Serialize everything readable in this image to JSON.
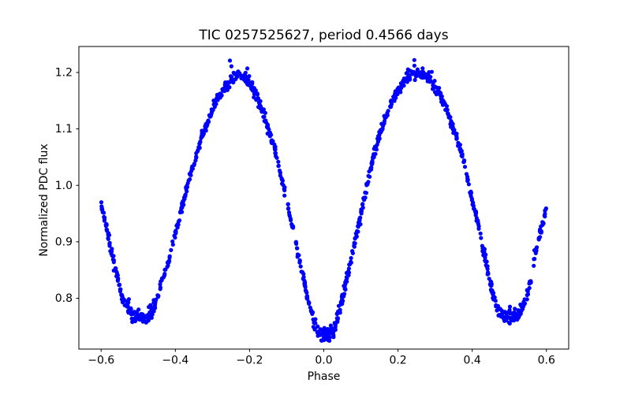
{
  "figure": {
    "title": "TIC 0257525627, period 0.4566 days",
    "xlabel": "Phase",
    "ylabel": "Normalized PDC flux"
  },
  "colors": {
    "marker": "#0000ff",
    "axis": "#000000",
    "text": "#000000",
    "background": "#ffffff"
  },
  "chart_data": {
    "type": "scatter",
    "title": "TIC 0257525627, period 0.4566 days",
    "xlabel": "Phase",
    "ylabel": "Normalized PDC flux",
    "grid": false,
    "legend": null,
    "xlim": [
      -0.66,
      0.66
    ],
    "ylim": [
      0.71,
      1.246
    ],
    "x_ticks": [
      -0.6,
      -0.4,
      -0.2,
      0.0,
      0.2,
      0.4,
      0.6
    ],
    "x_tick_labels": [
      "−0.6",
      "−0.4",
      "−0.2",
      "0.0",
      "0.2",
      "0.4",
      "0.6"
    ],
    "y_ticks": [
      0.8,
      0.9,
      1.0,
      1.1,
      1.2
    ],
    "y_tick_labels": [
      "0.8",
      "0.9",
      "1.0",
      "1.1",
      "1.2"
    ],
    "marker": {
      "shape": "circle",
      "color": "#0000ff",
      "radius_px": 2.6
    },
    "phase_range": [
      -0.6,
      0.6
    ],
    "n_points": 1150,
    "noise_sigma": 0.0045,
    "noise_sigma_minima": 0.0062,
    "noise_sigma_maxima": 0.005,
    "seed": 20257,
    "curve_samples": [
      [
        -0.6,
        0.966
      ],
      [
        -0.59,
        0.941
      ],
      [
        -0.583,
        0.919
      ],
      [
        -0.575,
        0.891
      ],
      [
        -0.566,
        0.867
      ],
      [
        -0.558,
        0.844
      ],
      [
        -0.551,
        0.825
      ],
      [
        -0.545,
        0.807
      ],
      [
        -0.534,
        0.787
      ],
      [
        -0.519,
        0.773
      ],
      [
        -0.508,
        0.768
      ],
      [
        -0.495,
        0.765
      ],
      [
        -0.482,
        0.766
      ],
      [
        -0.47,
        0.771
      ],
      [
        -0.46,
        0.783
      ],
      [
        -0.449,
        0.801
      ],
      [
        -0.438,
        0.825
      ],
      [
        -0.423,
        0.853
      ],
      [
        -0.413,
        0.881
      ],
      [
        -0.402,
        0.91
      ],
      [
        -0.391,
        0.938
      ],
      [
        -0.381,
        0.966
      ],
      [
        -0.37,
        0.994
      ],
      [
        -0.359,
        1.022
      ],
      [
        -0.345,
        1.05
      ],
      [
        -0.332,
        1.078
      ],
      [
        -0.317,
        1.106
      ],
      [
        -0.3,
        1.134
      ],
      [
        -0.281,
        1.158
      ],
      [
        -0.259,
        1.18
      ],
      [
        -0.248,
        1.19
      ],
      [
        -0.237,
        1.195
      ],
      [
        -0.225,
        1.196
      ],
      [
        -0.212,
        1.191
      ],
      [
        -0.195,
        1.176
      ],
      [
        -0.174,
        1.148
      ],
      [
        -0.161,
        1.124
      ],
      [
        -0.146,
        1.092
      ],
      [
        -0.131,
        1.06
      ],
      [
        -0.121,
        1.032
      ],
      [
        -0.108,
        0.998
      ],
      [
        -0.097,
        0.966
      ],
      [
        -0.087,
        0.933
      ],
      [
        -0.076,
        0.9
      ],
      [
        -0.065,
        0.867
      ],
      [
        -0.055,
        0.835
      ],
      [
        -0.046,
        0.807
      ],
      [
        -0.033,
        0.773
      ],
      [
        -0.024,
        0.752
      ],
      [
        -0.012,
        0.738
      ],
      [
        0.0,
        0.735
      ],
      [
        0.01,
        0.734
      ],
      [
        0.022,
        0.738
      ],
      [
        0.032,
        0.752
      ],
      [
        0.042,
        0.778
      ],
      [
        0.052,
        0.807
      ],
      [
        0.063,
        0.835
      ],
      [
        0.073,
        0.867
      ],
      [
        0.084,
        0.9
      ],
      [
        0.095,
        0.933
      ],
      [
        0.105,
        0.966
      ],
      [
        0.116,
        0.998
      ],
      [
        0.127,
        1.032
      ],
      [
        0.137,
        1.06
      ],
      [
        0.152,
        1.092
      ],
      [
        0.163,
        1.114
      ],
      [
        0.174,
        1.134
      ],
      [
        0.195,
        1.163
      ],
      [
        0.215,
        1.184
      ],
      [
        0.228,
        1.193
      ],
      [
        0.24,
        1.198
      ],
      [
        0.252,
        1.2
      ],
      [
        0.264,
        1.198
      ],
      [
        0.276,
        1.193
      ],
      [
        0.288,
        1.184
      ],
      [
        0.298,
        1.176
      ],
      [
        0.32,
        1.15
      ],
      [
        0.337,
        1.125
      ],
      [
        0.358,
        1.083
      ],
      [
        0.38,
        1.036
      ],
      [
        0.397,
        0.984
      ],
      [
        0.415,
        0.933
      ],
      [
        0.429,
        0.886
      ],
      [
        0.444,
        0.844
      ],
      [
        0.458,
        0.802
      ],
      [
        0.468,
        0.78
      ],
      [
        0.478,
        0.769
      ],
      [
        0.492,
        0.765
      ],
      [
        0.505,
        0.766
      ],
      [
        0.518,
        0.77
      ],
      [
        0.53,
        0.778
      ],
      [
        0.54,
        0.79
      ],
      [
        0.547,
        0.801
      ],
      [
        0.557,
        0.833
      ],
      [
        0.568,
        0.874
      ],
      [
        0.579,
        0.905
      ],
      [
        0.589,
        0.931
      ],
      [
        0.6,
        0.962
      ]
    ],
    "outliers": [
      [
        -0.253,
        1.221
      ],
      [
        -0.249,
        1.211
      ],
      [
        -0.206,
        1.207
      ],
      [
        0.244,
        1.222
      ],
      [
        0.291,
        1.201
      ]
    ]
  }
}
